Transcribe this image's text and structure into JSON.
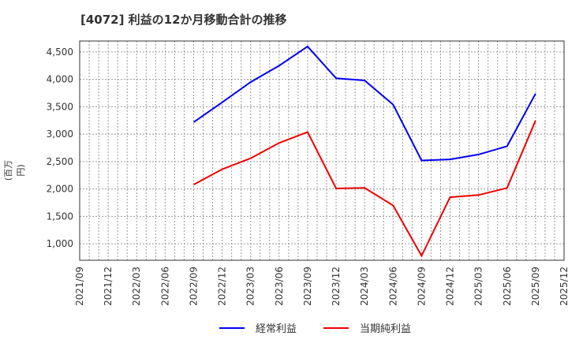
{
  "title": "[4072]  利益の12か月移動合計の推移",
  "y_axis_label": "(百万円)",
  "legend": [
    {
      "label": "経常利益",
      "color": "#0000ee"
    },
    {
      "label": "当期純利益",
      "color": "#ee0000"
    }
  ],
  "chart_data": {
    "type": "line",
    "title": "[4072]  利益の12か月移動合計の推移",
    "xlabel": "",
    "ylabel": "(百万円)",
    "x_ticks": [
      "2021/09",
      "2021/12",
      "2022/03",
      "2022/06",
      "2022/09",
      "2022/12",
      "2023/03",
      "2023/06",
      "2023/09",
      "2023/12",
      "2024/03",
      "2024/06",
      "2024/09",
      "2024/12",
      "2025/03",
      "2025/06",
      "2025/09",
      "2025/12"
    ],
    "y_ticks": [
      1000,
      1500,
      2000,
      2500,
      3000,
      3500,
      4000,
      4500
    ],
    "y_tick_labels": [
      "1,000",
      "1,500",
      "2,000",
      "2,500",
      "3,000",
      "3,500",
      "4,000",
      "4,500"
    ],
    "ylim": [
      700,
      4700
    ],
    "grid": true,
    "legend_position": "bottom",
    "x": [
      "2022/09",
      "2022/12",
      "2023/03",
      "2023/06",
      "2023/09",
      "2023/12",
      "2024/03",
      "2024/06",
      "2024/09",
      "2024/12",
      "2025/03",
      "2025/06",
      "2025/09"
    ],
    "series": [
      {
        "name": "経常利益",
        "color": "#0000ee",
        "values": [
          3220,
          3580,
          3950,
          4250,
          4600,
          4020,
          3980,
          3540,
          2520,
          2540,
          2630,
          2780,
          3740
        ]
      },
      {
        "name": "当期純利益",
        "color": "#ee0000",
        "values": [
          2080,
          2360,
          2560,
          2840,
          3040,
          2010,
          2020,
          1700,
          780,
          1850,
          1890,
          2020,
          3250
        ]
      }
    ]
  }
}
